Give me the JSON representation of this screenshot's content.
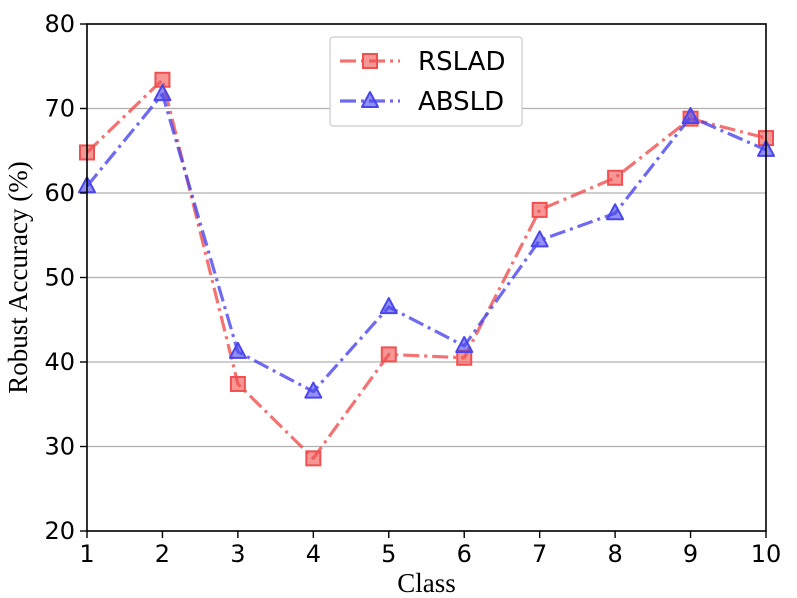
{
  "chart_data": {
    "type": "line",
    "title": "",
    "xlabel": "Class",
    "ylabel": "Robust Accuracy (%)",
    "x": [
      1,
      2,
      3,
      4,
      5,
      6,
      7,
      8,
      9,
      10
    ],
    "xlim": [
      1,
      10
    ],
    "ylim": [
      20,
      80
    ],
    "yticks": [
      20,
      30,
      40,
      50,
      60,
      70,
      80
    ],
    "grid": "horizontal",
    "legend": "top-center",
    "series": [
      {
        "name": "RSLAD",
        "marker": "square",
        "linestyle": "dashdot",
        "color": "#f0504f",
        "values": [
          64.8,
          73.4,
          37.4,
          28.6,
          40.9,
          40.5,
          58.0,
          61.8,
          68.8,
          66.5
        ]
      },
      {
        "name": "ABSLD",
        "marker": "triangle",
        "linestyle": "dashdot",
        "color": "#4a46ee",
        "values": [
          60.8,
          71.7,
          41.2,
          36.5,
          46.5,
          41.9,
          54.4,
          57.6,
          69.0,
          65.1
        ]
      }
    ]
  }
}
